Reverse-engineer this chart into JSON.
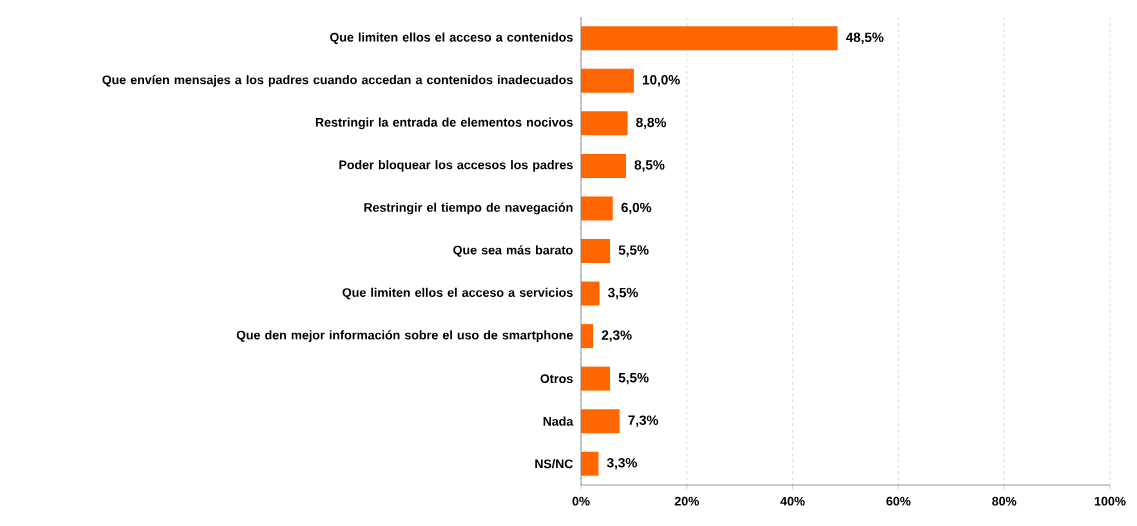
{
  "chart_data": {
    "type": "bar",
    "orientation": "horizontal",
    "categories": [
      "Que limiten ellos el acceso a contenidos",
      "Que envíen mensajes a los padres cuando accedan a contenidos inadecuados",
      "Restringir la entrada de elementos nocivos",
      "Poder bloquear los accesos los padres",
      "Restringir el tiempo de navegación",
      "Que sea más barato",
      "Que limiten ellos el acceso a servicios",
      "Que den mejor información sobre el uso de smartphone",
      "Otros",
      "Nada",
      "NS/NC"
    ],
    "values": [
      48.5,
      10.0,
      8.8,
      8.5,
      6.0,
      5.5,
      3.5,
      2.3,
      5.5,
      7.3,
      3.3
    ],
    "value_labels": [
      "48,5%",
      "10,0%",
      "8,8%",
      "8,5%",
      "6,0%",
      "5,5%",
      "3,5%",
      "2,3%",
      "5,5%",
      "7,3%",
      "3,3%"
    ],
    "color": "#ff6600",
    "xlim": [
      0,
      100
    ],
    "xticks": [
      {
        "value": 0,
        "label": "0%"
      },
      {
        "value": 20,
        "label": "20%"
      },
      {
        "value": 40,
        "label": "40%"
      },
      {
        "value": 60,
        "label": "60%"
      },
      {
        "value": 80,
        "label": "80%"
      },
      {
        "value": 100,
        "label": "100%"
      }
    ],
    "grid": "x"
  }
}
